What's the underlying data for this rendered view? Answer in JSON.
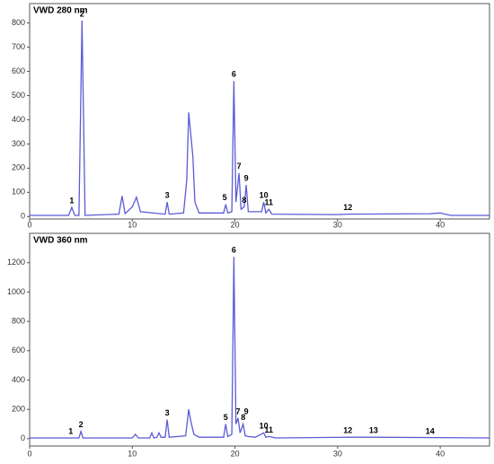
{
  "chart_data": [
    {
      "type": "line",
      "title": "VWD  280  nm",
      "color": "#5b5bd6",
      "xlim": [
        0,
        44.8
      ],
      "xticks": [
        0,
        10,
        20,
        30,
        40
      ],
      "ylim": [
        -10,
        880
      ],
      "yticks": [
        0,
        100,
        200,
        300,
        400,
        500,
        600,
        700,
        800
      ],
      "x": [
        0,
        3.8,
        4.1,
        4.4,
        4.8,
        5.1,
        5.4,
        8.7,
        9.0,
        9.3,
        10.0,
        10.4,
        10.8,
        13.2,
        13.4,
        13.6,
        15.0,
        15.3,
        15.5,
        15.7,
        15.9,
        16.1,
        16.5,
        18.9,
        19.1,
        19.3,
        19.7,
        19.9,
        20.1,
        20.4,
        20.6,
        20.9,
        21.1,
        21.3,
        22.6,
        22.8,
        23.0,
        23.3,
        23.6,
        30,
        31,
        39,
        40,
        41,
        44.8
      ],
      "values": [
        5,
        5,
        38,
        5,
        5,
        810,
        5,
        10,
        85,
        12,
        40,
        80,
        20,
        10,
        60,
        10,
        15,
        150,
        430,
        340,
        250,
        60,
        15,
        15,
        50,
        15,
        20,
        560,
        60,
        180,
        30,
        40,
        130,
        20,
        20,
        60,
        15,
        30,
        10,
        8,
        10,
        12,
        15,
        5,
        5
      ],
      "peaks": [
        {
          "label": "1",
          "x": 4.1,
          "y": 38
        },
        {
          "label": "2",
          "x": 5.1,
          "y": 810
        },
        {
          "label": "3",
          "x": 13.4,
          "y": 60
        },
        {
          "label": "5",
          "x": 19.0,
          "y": 50
        },
        {
          "label": "6",
          "x": 19.9,
          "y": 560
        },
        {
          "label": "7",
          "x": 20.4,
          "y": 180
        },
        {
          "label": "8",
          "x": 20.9,
          "y": 40
        },
        {
          "label": "9",
          "x": 21.1,
          "y": 130
        },
        {
          "label": "10",
          "x": 22.8,
          "y": 60
        },
        {
          "label": "11",
          "x": 23.3,
          "y": 30
        },
        {
          "label": "12",
          "x": 31,
          "y": 10
        }
      ]
    },
    {
      "type": "line",
      "title": "VWD  360  nm",
      "color": "#5b5bd6",
      "xlim": [
        0,
        44.8
      ],
      "xticks": [
        0,
        10,
        20,
        30,
        40
      ],
      "ylim": [
        -50,
        1400
      ],
      "yticks": [
        0,
        200,
        400,
        600,
        800,
        1000,
        1200
      ],
      "x": [
        0,
        4.8,
        5.0,
        5.2,
        10.0,
        10.3,
        10.6,
        11.7,
        11.9,
        12.1,
        12.4,
        12.6,
        12.8,
        13.2,
        13.4,
        13.6,
        15.2,
        15.5,
        15.7,
        16.0,
        16.5,
        18.9,
        19.1,
        19.3,
        19.7,
        19.9,
        20.1,
        20.3,
        20.5,
        20.8,
        21.0,
        21.3,
        22.0,
        22.8,
        23.0,
        23.3,
        24,
        31,
        33.5,
        44.8
      ],
      "values": [
        5,
        5,
        50,
        5,
        5,
        30,
        5,
        5,
        40,
        5,
        10,
        40,
        10,
        10,
        130,
        10,
        20,
        200,
        120,
        30,
        10,
        10,
        100,
        15,
        30,
        1240,
        100,
        140,
        40,
        100,
        20,
        15,
        10,
        40,
        10,
        15,
        5,
        10,
        10,
        5
      ],
      "peaks": [
        {
          "label": "1",
          "x": 4.0,
          "y": 5
        },
        {
          "label": "2",
          "x": 5.0,
          "y": 50
        },
        {
          "label": "3",
          "x": 13.4,
          "y": 130
        },
        {
          "label": "5",
          "x": 19.1,
          "y": 100
        },
        {
          "label": "6",
          "x": 19.9,
          "y": 1240
        },
        {
          "label": "7",
          "x": 20.3,
          "y": 140
        },
        {
          "label": "8",
          "x": 20.8,
          "y": 100
        },
        {
          "label": "9",
          "x": 21.1,
          "y": 140
        },
        {
          "label": "10",
          "x": 22.8,
          "y": 40
        },
        {
          "label": "11",
          "x": 23.3,
          "y": 15
        },
        {
          "label": "12",
          "x": 31,
          "y": 10
        },
        {
          "label": "13",
          "x": 33.5,
          "y": 10
        },
        {
          "label": "14",
          "x": 39,
          "y": 5
        }
      ]
    }
  ]
}
